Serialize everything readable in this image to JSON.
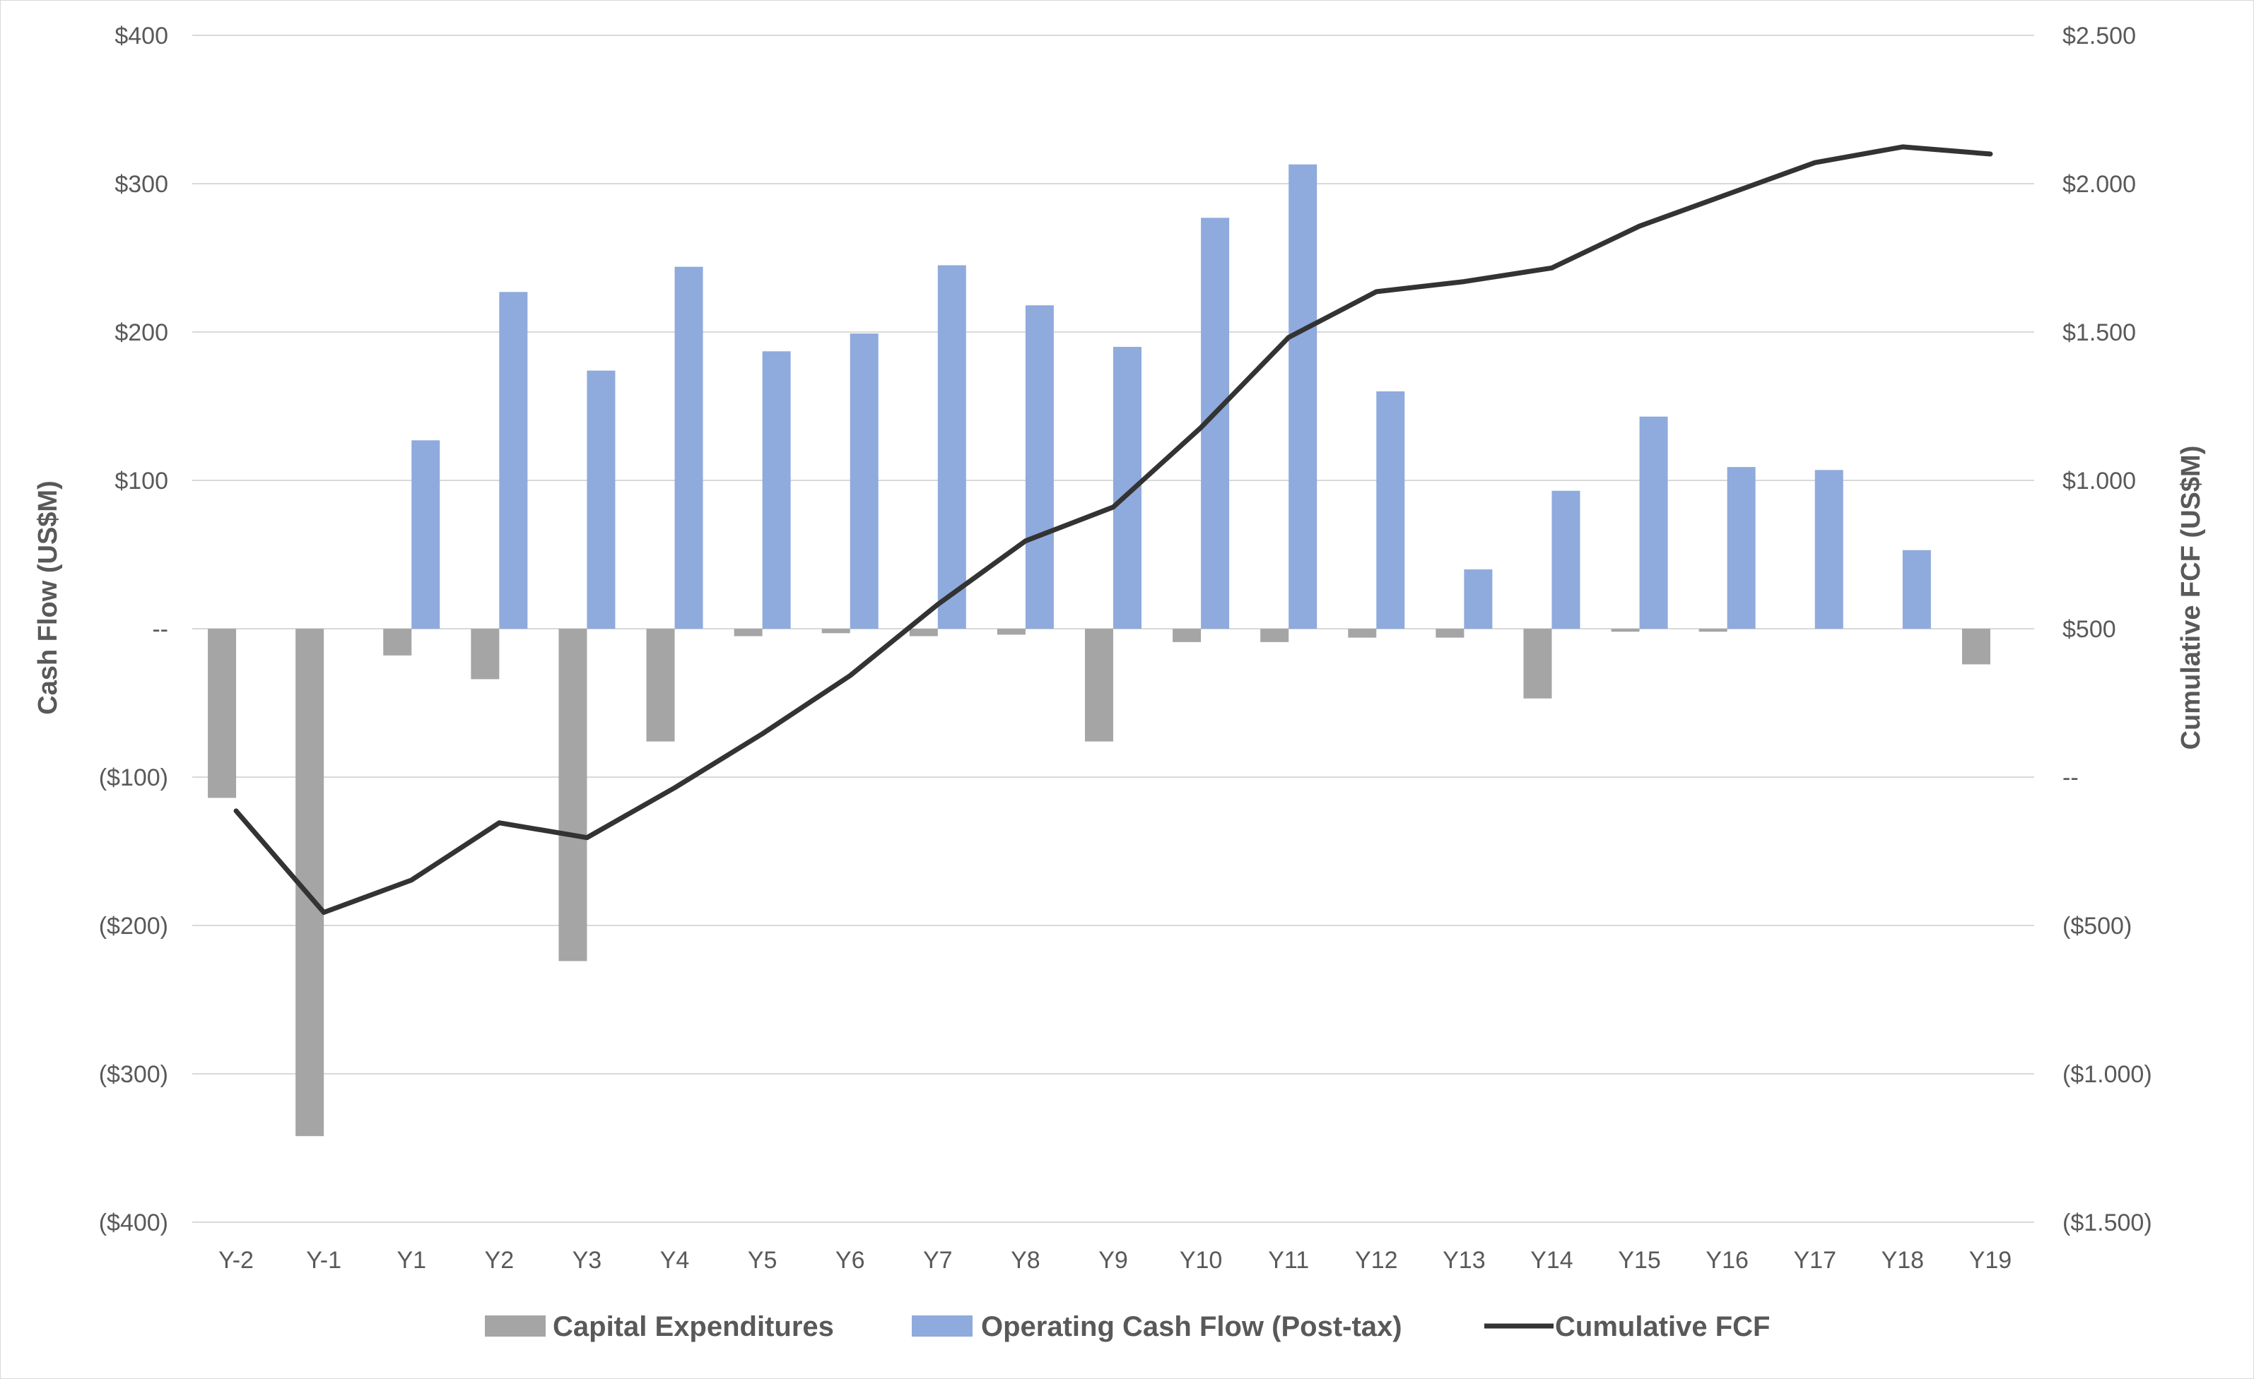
{
  "chart_data": {
    "type": "bar",
    "title": "",
    "categories": [
      "Y-2",
      "Y-1",
      "Y1",
      "Y2",
      "Y3",
      "Y4",
      "Y5",
      "Y6",
      "Y7",
      "Y8",
      "Y9",
      "Y10",
      "Y11",
      "Y12",
      "Y13",
      "Y14",
      "Y15",
      "Y16",
      "Y17",
      "Y18",
      "Y19"
    ],
    "series": [
      {
        "name": "Capital Expenditures",
        "kind": "bar",
        "axis": "left",
        "color": "#a5a5a5",
        "values": [
          -114,
          -342,
          -18,
          -34,
          -224,
          -76,
          -5,
          -3,
          -5,
          -4,
          -76,
          -9,
          -9,
          -6,
          -6,
          -47,
          -2,
          -2,
          0,
          0,
          -24
        ]
      },
      {
        "name": "Operating Cash Flow (Post-tax)",
        "kind": "bar",
        "axis": "left",
        "color": "#8faadc",
        "values": [
          0,
          0,
          127,
          227,
          174,
          244,
          187,
          199,
          245,
          218,
          190,
          277,
          313,
          160,
          40,
          93,
          143,
          109,
          107,
          53,
          0
        ]
      },
      {
        "name": "Cumulative FCF",
        "kind": "line",
        "axis": "right",
        "color": "#333333",
        "values": [
          -114,
          -456,
          -347,
          -154,
          -204,
          -36,
          146,
          342,
          582,
          796,
          910,
          1178,
          1482,
          1636,
          1670,
          1716,
          1857,
          1964,
          2071,
          2124,
          2100
        ]
      }
    ],
    "ylabel": "Cash Flow (US$M)",
    "y2label": "Cumulative FCF (US$M)",
    "ylim": [
      -400,
      400
    ],
    "y2lim": [
      -1500,
      2500
    ],
    "yticks": [
      "$400",
      "$300",
      "$200",
      "$100",
      "--",
      "($100)",
      "($200)",
      "($300)",
      "($400)"
    ],
    "y2ticks": [
      "$2.500",
      "$2.000",
      "$1.500",
      "$1.000",
      "$500",
      "--",
      "($500)",
      "($1.000)",
      "($1.500)"
    ],
    "grid": true,
    "legend": "bottom"
  }
}
